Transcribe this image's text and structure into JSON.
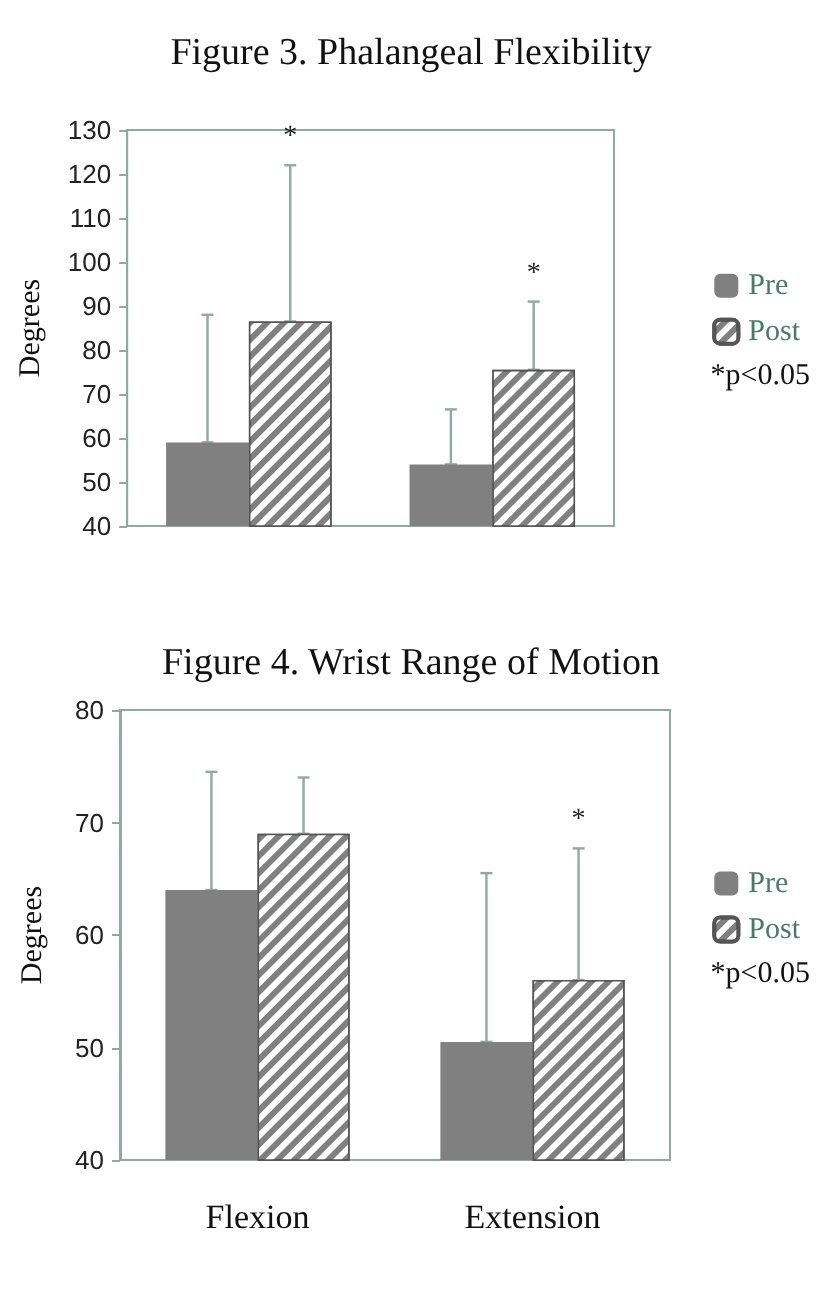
{
  "chart_data": [
    {
      "type": "bar",
      "title": "Figure 3. Phalangeal Flexibility",
      "ylabel": "Degrees",
      "categories": [
        null,
        null
      ],
      "series": [
        {
          "name": "Pre",
          "color": "#808080",
          "values": [
            59,
            54
          ],
          "errors": [
            [
              59,
              88
            ],
            [
              54,
              66.5
            ]
          ]
        },
        {
          "name": "Post",
          "color": "#808080",
          "values": [
            86.5,
            75.5
          ],
          "errors": [
            [
              86.5,
              122
            ],
            [
              75.5,
              91
            ]
          ]
        }
      ],
      "ylim": [
        40,
        130
      ],
      "yticks": [
        40,
        50,
        60,
        70,
        80,
        90,
        100,
        110,
        120,
        130
      ],
      "grid": false,
      "legend": "right",
      "annotations": [
        {
          "text": "*",
          "y": 122
        },
        {
          "text": "*",
          "y": 91
        },
        "*p<0.05"
      ]
    },
    {
      "type": "bar",
      "title": "Figure 4. Wrist Range of Motion",
      "ylabel": "Degrees",
      "categories": [
        "Flexion",
        "Extension"
      ],
      "series": [
        {
          "name": "Pre",
          "color": "#808080",
          "values": [
            64,
            50.5
          ],
          "errors": [
            [
              64,
              74.5
            ],
            [
              50.5,
              65.5
            ]
          ]
        },
        {
          "name": "Post",
          "color": "#808080",
          "values": [
            69,
            56
          ],
          "errors": [
            [
              69,
              74
            ],
            [
              56,
              67.7
            ]
          ]
        }
      ],
      "ylim": [
        40,
        80
      ],
      "yticks": [
        40,
        50,
        60,
        70,
        80
      ],
      "grid": false,
      "legend": "right",
      "annotations": [
        {
          "text": "*",
          "y": 67.7
        },
        "*p<0.05"
      ]
    }
  ]
}
